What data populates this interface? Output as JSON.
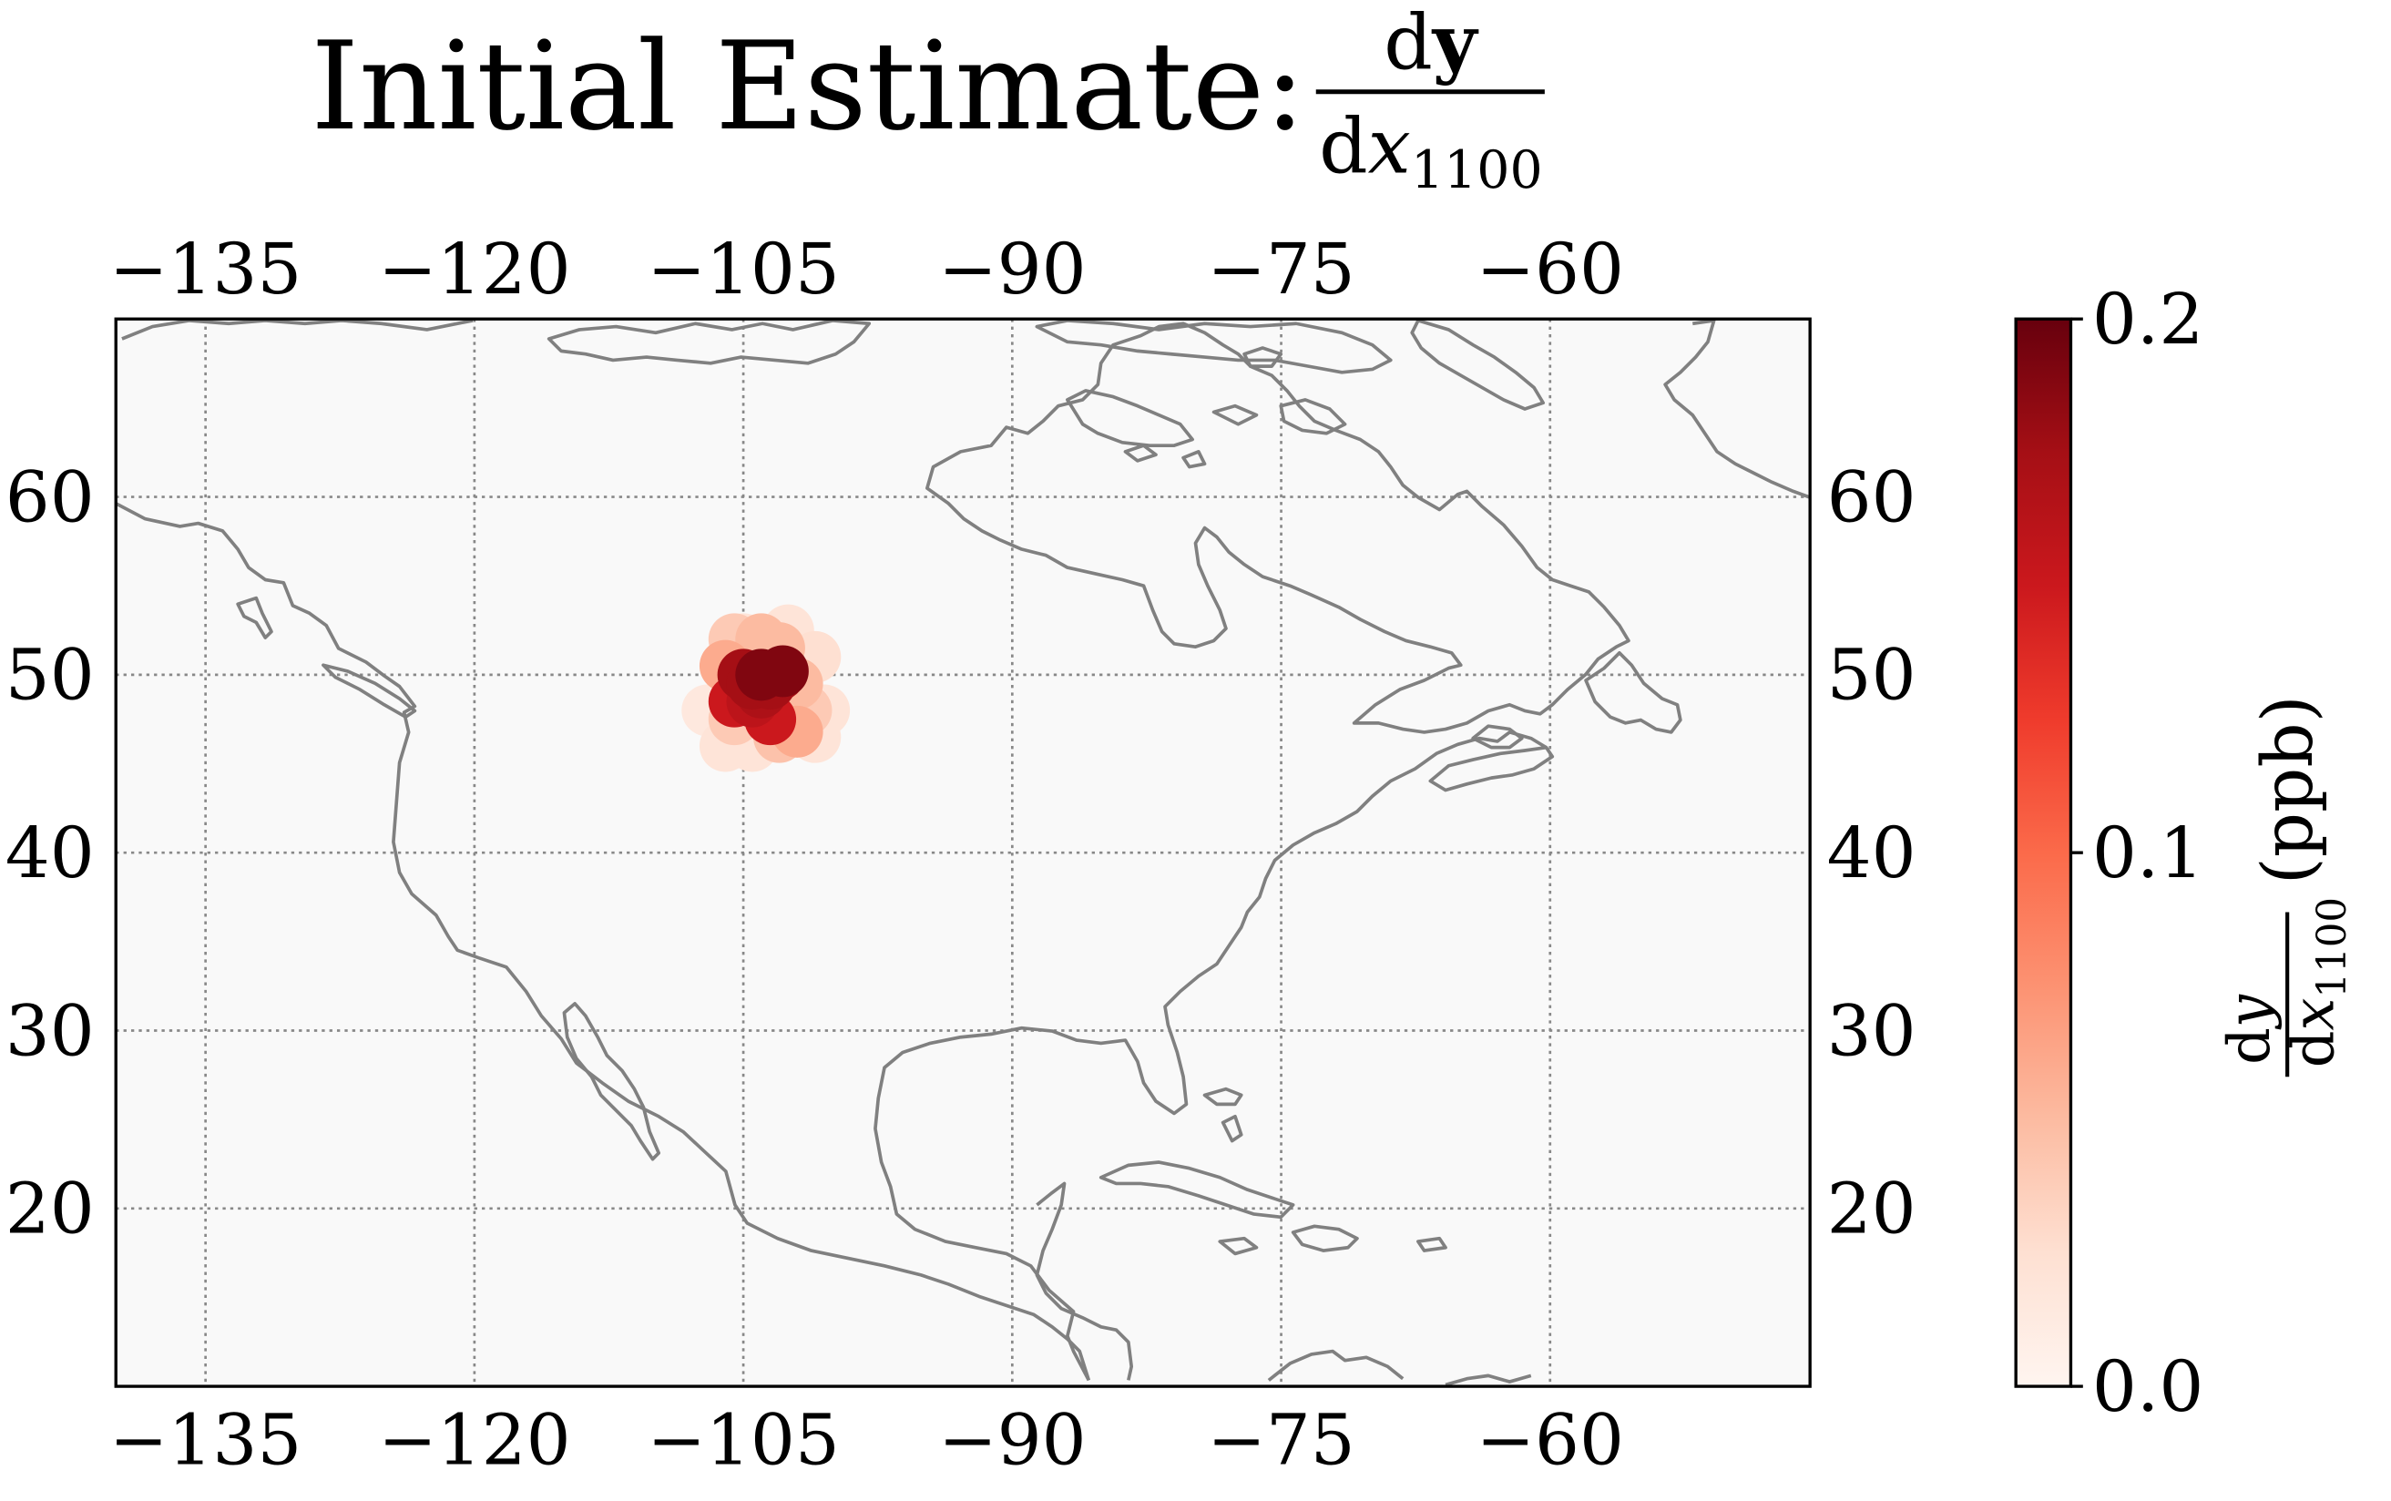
{
  "title": {
    "prefix": "Initial Estimate:",
    "frac_num_d": "d",
    "frac_num_var": "y",
    "frac_den_d": "d",
    "frac_den_var": "x",
    "frac_den_sub": "1100"
  },
  "colorbar": {
    "label_num_d": "d",
    "label_num_var": "y",
    "label_den_d": "d",
    "label_den_var": "x",
    "label_den_sub": "1100",
    "label_unit": "(ppb)",
    "ticks": [
      {
        "value": 0.0,
        "label": "0.0"
      },
      {
        "value": 0.1,
        "label": "0.1"
      },
      {
        "value": 0.2,
        "label": "0.2"
      }
    ],
    "vmin": 0.0,
    "vmax": 0.2,
    "colormap": "Reds"
  },
  "colors": {
    "ocean_background": "#f9f9f9",
    "coastline": "#808080",
    "gridline": "#888888",
    "frame": "#000000"
  },
  "chart_data": {
    "type": "scatter",
    "projection": "PlateCarree",
    "xlim": [
      -140,
      -45.5
    ],
    "ylim": [
      10,
      70
    ],
    "grid": true,
    "x_ticks": [
      {
        "value": -135,
        "label": "−135"
      },
      {
        "value": -120,
        "label": "−120"
      },
      {
        "value": -105,
        "label": "−105"
      },
      {
        "value": -90,
        "label": "−90"
      },
      {
        "value": -75,
        "label": "−75"
      },
      {
        "value": -60,
        "label": "−60"
      }
    ],
    "y_ticks": [
      {
        "value": 20,
        "label": "20"
      },
      {
        "value": 30,
        "label": "30"
      },
      {
        "value": 40,
        "label": "40"
      },
      {
        "value": 50,
        "label": "50"
      },
      {
        "value": 60,
        "label": "60"
      }
    ],
    "points": [
      {
        "lon": -105.0,
        "lat": 52.0,
        "v": 0.02
      },
      {
        "lon": -102.5,
        "lat": 52.5,
        "v": 0.02
      },
      {
        "lon": -101.0,
        "lat": 51.0,
        "v": 0.025
      },
      {
        "lon": -105.5,
        "lat": 52.0,
        "v": 0.04
      },
      {
        "lon": -103.0,
        "lat": 51.5,
        "v": 0.05
      },
      {
        "lon": -106.0,
        "lat": 50.5,
        "v": 0.06
      },
      {
        "lon": -104.0,
        "lat": 52.0,
        "v": 0.05
      },
      {
        "lon": -107.0,
        "lat": 48.0,
        "v": 0.015
      },
      {
        "lon": -105.5,
        "lat": 47.5,
        "v": 0.04
      },
      {
        "lon": -106.0,
        "lat": 46.0,
        "v": 0.02
      },
      {
        "lon": -104.5,
        "lat": 46.0,
        "v": 0.02
      },
      {
        "lon": -102.0,
        "lat": 49.5,
        "v": 0.05
      },
      {
        "lon": -101.5,
        "lat": 48.0,
        "v": 0.04
      },
      {
        "lon": -100.5,
        "lat": 48.0,
        "v": 0.02
      },
      {
        "lon": -101.0,
        "lat": 46.5,
        "v": 0.02
      },
      {
        "lon": -103.0,
        "lat": 46.5,
        "v": 0.045
      },
      {
        "lon": -102.0,
        "lat": 46.8,
        "v": 0.06
      },
      {
        "lon": -105.5,
        "lat": 48.5,
        "v": 0.15
      },
      {
        "lon": -103.5,
        "lat": 47.5,
        "v": 0.15
      },
      {
        "lon": -104.5,
        "lat": 48.5,
        "v": 0.16
      },
      {
        "lon": -104.0,
        "lat": 49.0,
        "v": 0.17
      },
      {
        "lon": -103.0,
        "lat": 50.0,
        "v": 0.175
      },
      {
        "lon": -105.0,
        "lat": 50.0,
        "v": 0.175
      },
      {
        "lon": -104.5,
        "lat": 49.5,
        "v": 0.175
      },
      {
        "lon": -103.5,
        "lat": 49.5,
        "v": 0.175
      },
      {
        "lon": -104.0,
        "lat": 50.0,
        "v": 0.19
      },
      {
        "lon": -102.8,
        "lat": 50.2,
        "v": 0.19
      }
    ]
  }
}
